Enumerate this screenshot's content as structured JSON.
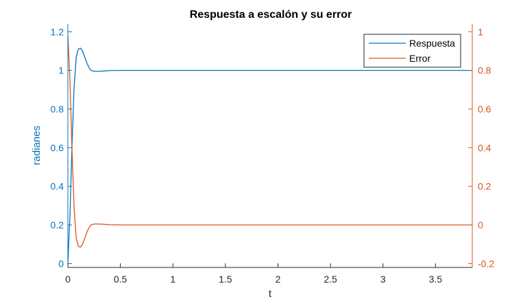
{
  "chart_data": {
    "type": "line",
    "title": "Respuesta a escalón y su error",
    "xlabel": "t",
    "ylabel_left": "radianes",
    "ylabel_right": "",
    "xlim": [
      0,
      3.85
    ],
    "ylim_left": [
      -0.02,
      1.24
    ],
    "ylim_right": [
      -0.22,
      1.04
    ],
    "x_ticks": [
      0,
      0.5,
      1,
      1.5,
      2,
      2.5,
      3,
      3.5
    ],
    "x_tick_labels": [
      "0",
      "0.5",
      "1",
      "1.5",
      "2",
      "2.5",
      "3",
      "3.5"
    ],
    "y_left_ticks": [
      0,
      0.2,
      0.4,
      0.6,
      0.8,
      1,
      1.2
    ],
    "y_left_tick_labels": [
      "0",
      "0.2",
      "0.4",
      "0.6",
      "0.8",
      "1",
      "1.2"
    ],
    "y_right_ticks": [
      -0.2,
      0,
      0.2,
      0.4,
      0.6,
      0.8,
      1
    ],
    "y_right_tick_labels": [
      "-0.2",
      "0",
      "0.2",
      "0.4",
      "0.6",
      "0.8",
      "1"
    ],
    "grid": false,
    "legend_position": "top-right",
    "colors": {
      "left_axis": "#0072BD",
      "right_axis": "#D95319",
      "axes": "#262626"
    },
    "series": [
      {
        "name": "Respuesta",
        "axis": "left",
        "color": "#0072BD",
        "x": [
          0,
          0.02,
          0.04,
          0.06,
          0.08,
          0.1,
          0.12,
          0.14,
          0.16,
          0.18,
          0.2,
          0.22,
          0.25,
          0.3,
          0.35,
          0.4,
          0.5,
          0.7,
          1.0,
          2.0,
          3.0,
          3.85
        ],
        "y": [
          0,
          0.25,
          0.62,
          0.92,
          1.07,
          1.11,
          1.115,
          1.1,
          1.07,
          1.04,
          1.015,
          1.0,
          0.995,
          0.995,
          0.997,
          0.999,
          1.0,
          1.0,
          1.0,
          1.0,
          1.0,
          1.0
        ]
      },
      {
        "name": "Error",
        "axis": "right",
        "color": "#D95319",
        "x": [
          0,
          0.02,
          0.04,
          0.06,
          0.08,
          0.1,
          0.12,
          0.14,
          0.16,
          0.18,
          0.2,
          0.22,
          0.25,
          0.3,
          0.35,
          0.4,
          0.5,
          0.7,
          1.0,
          2.0,
          3.0,
          3.85
        ],
        "y": [
          0.98,
          0.75,
          0.38,
          0.08,
          -0.07,
          -0.11,
          -0.115,
          -0.1,
          -0.07,
          -0.04,
          -0.015,
          0.0,
          0.005,
          0.005,
          0.003,
          0.001,
          0.0,
          0.0,
          0.0,
          0.0,
          0.0,
          0.0
        ]
      }
    ]
  }
}
